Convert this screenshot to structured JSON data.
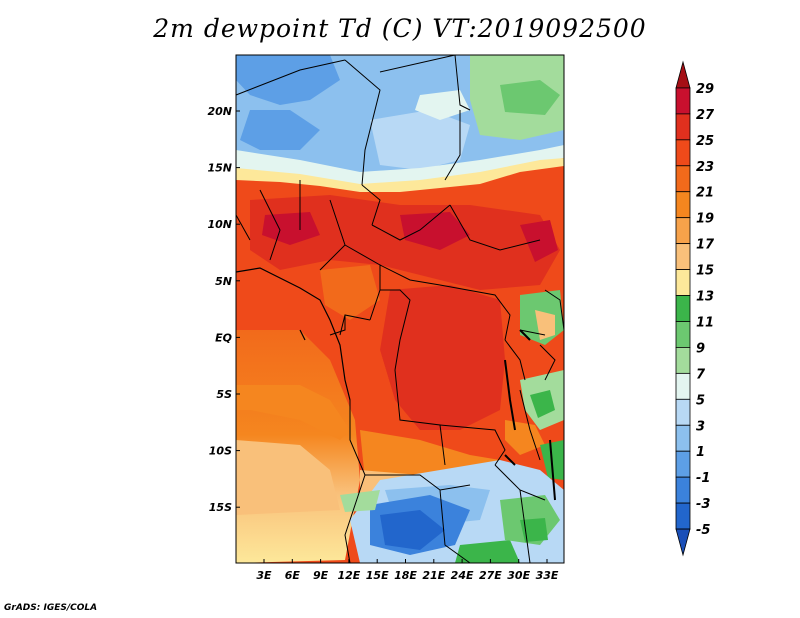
{
  "title": "2m dewpoint Td (C) VT:2019092500",
  "credit": "GrADS: IGES/COLA",
  "map": {
    "lon_ticks": [
      "3E",
      "6E",
      "9E",
      "12E",
      "15E",
      "18E",
      "21E",
      "24E",
      "27E",
      "30E",
      "33E"
    ],
    "lat_ticks": [
      "20N",
      "15N",
      "10N",
      "5N",
      "EQ",
      "5S",
      "10S",
      "15S"
    ]
  },
  "colorbar": {
    "levels": [
      "29",
      "27",
      "25",
      "23",
      "21",
      "19",
      "17",
      "15",
      "13",
      "11",
      "9",
      "7",
      "5",
      "3",
      "1",
      "-1",
      "-3",
      "-5"
    ],
    "colors": [
      "#a50f15",
      "#c8102e",
      "#e0301e",
      "#ef4a1a",
      "#f26a1b",
      "#f5861f",
      "#f7a24a",
      "#f9c07a",
      "#fde89a",
      "#3bb54a",
      "#6cc870",
      "#a3dc9c",
      "#e3f5f0",
      "#b8d9f5",
      "#8cc0ee",
      "#5d9fe6",
      "#3b82dc",
      "#2266cc",
      "#1a4fb8"
    ]
  }
}
